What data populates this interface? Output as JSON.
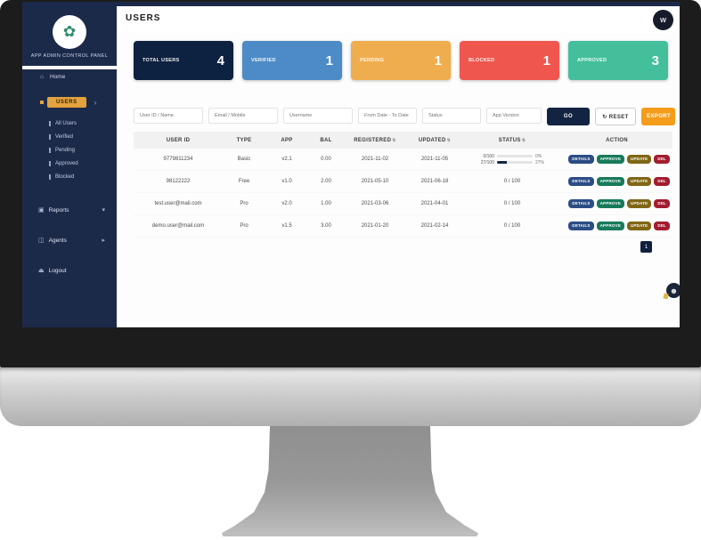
{
  "header": {
    "title": "USERS",
    "avatar_text": "W"
  },
  "sidebar": {
    "brand": "APP ADMIN CONTROL PANEL",
    "logo_glyph": "✿",
    "home_icon": "⌂",
    "home_label": "Home",
    "selected_label": "USERS",
    "selected_caret": "›",
    "subitems": [
      {
        "label": "All Users"
      },
      {
        "label": "Verified"
      },
      {
        "label": "Pending"
      },
      {
        "label": "Approved"
      },
      {
        "label": "Blocked"
      }
    ],
    "groups": [
      {
        "icon": "▣",
        "label": "Reports",
        "caret": "▾"
      },
      {
        "icon": "◫",
        "label": "Agents",
        "caret": "▸"
      },
      {
        "icon": "⏏",
        "label": "Logout",
        "caret": ""
      }
    ]
  },
  "cards": [
    {
      "label": "TOTAL USERS",
      "value": "4",
      "bg": "#0d2140"
    },
    {
      "label": "VERIFIED",
      "value": "1",
      "bg": "#4d8bc6"
    },
    {
      "label": "PENDING",
      "value": "1",
      "bg": "#f0ad4e"
    },
    {
      "label": "BLOCKED",
      "value": "1",
      "bg": "#ef564e"
    },
    {
      "label": "APPROVED",
      "value": "3",
      "bg": "#43bf9c"
    }
  ],
  "filters": {
    "inputs": [
      {
        "placeholder": "User ID / Name"
      },
      {
        "placeholder": "Email / Mobile"
      },
      {
        "placeholder": "Username"
      },
      {
        "placeholder": "From Date - To Date"
      },
      {
        "placeholder": "Status"
      },
      {
        "placeholder": "App Version"
      }
    ],
    "go_label": "GO",
    "reset_label": "↻ RESET",
    "export_label": "EXPORT"
  },
  "table": {
    "headers": [
      {
        "label": "USER ID",
        "sort": ""
      },
      {
        "label": "TYPE",
        "sort": ""
      },
      {
        "label": "APP",
        "sort": ""
      },
      {
        "label": "BAL",
        "sort": ""
      },
      {
        "label": "REGISTERED",
        "sort": "⇅"
      },
      {
        "label": "UPDATED",
        "sort": "⇅"
      },
      {
        "label": "STATUS",
        "sort": "⇅"
      },
      {
        "label": "ACTION",
        "sort": ""
      }
    ],
    "rows": [
      {
        "user": "9779811234",
        "type": "Basic",
        "app": "v2.1",
        "bal": "0.00",
        "registered": "2021-11-02",
        "updated": "2021-11-05",
        "progress": [
          {
            "label": "0/100",
            "width": "0%",
            "pct": "0%"
          },
          {
            "label": "27/100",
            "width": "27%",
            "pct": "27%"
          }
        ]
      },
      {
        "user": "98122222",
        "type": "Free",
        "app": "v1.0",
        "bal": "2.00",
        "registered": "2021-05-10",
        "updated": "2021-06-18",
        "status": "0 / 100"
      },
      {
        "user": "test.user@mail.com",
        "type": "Pro",
        "app": "v2.0",
        "bal": "1.00",
        "registered": "2021-03-06",
        "updated": "2021-04-01",
        "status": "0 / 100"
      },
      {
        "user": "demo.user@mail.com",
        "type": "Pro",
        "app": "v1.5",
        "bal": "3.00",
        "registered": "2021-01-20",
        "updated": "2021-02-14",
        "status": "0 / 100"
      }
    ],
    "actions": [
      {
        "label": "DETAILS",
        "bg": "#2b4d85"
      },
      {
        "label": "APPROVE",
        "bg": "#177a5b"
      },
      {
        "label": "UPDATE",
        "bg": "#806615"
      },
      {
        "label": "DEL",
        "bg": "#a31c2e"
      }
    ],
    "pagination": "1"
  },
  "colors": {
    "accent_orange": "#e2a23d",
    "navy": "#132442"
  }
}
